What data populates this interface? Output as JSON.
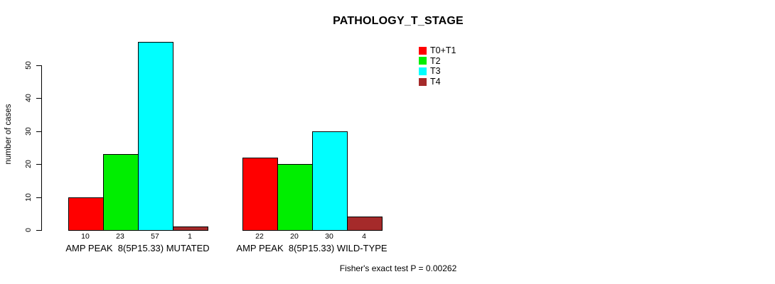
{
  "page": {
    "background": "#ffffff",
    "text_color": "#000000"
  },
  "chart_data": {
    "type": "bar",
    "title": "PATHOLOGY_T_STAGE",
    "xlabel": "",
    "ylabel": "number of cases",
    "ylim": [
      0,
      57
    ],
    "yticks": [
      0,
      10,
      20,
      30,
      40,
      50
    ],
    "grid": false,
    "legend_position": "top-right",
    "bar_borders": "#000000",
    "categories": [
      "AMP PEAK  8(5P15.33) MUTATED",
      "AMP PEAK  8(5P15.33) WILD-TYPE"
    ],
    "series": [
      {
        "name": "T0+T1",
        "color": "#ff0000",
        "values": [
          10,
          22
        ]
      },
      {
        "name": "T2",
        "color": "#00ee00",
        "values": [
          23,
          20
        ]
      },
      {
        "name": "T3",
        "color": "#00ffff",
        "values": [
          57,
          30
        ]
      },
      {
        "name": "T4",
        "color": "#a52a2a",
        "values": [
          1,
          4
        ]
      }
    ],
    "bar_value_labels": [
      [
        "10",
        "23",
        "57",
        "1"
      ],
      [
        "22",
        "20",
        "30",
        "4"
      ]
    ],
    "annotation": "Fisher's exact test P = 0.00262"
  }
}
